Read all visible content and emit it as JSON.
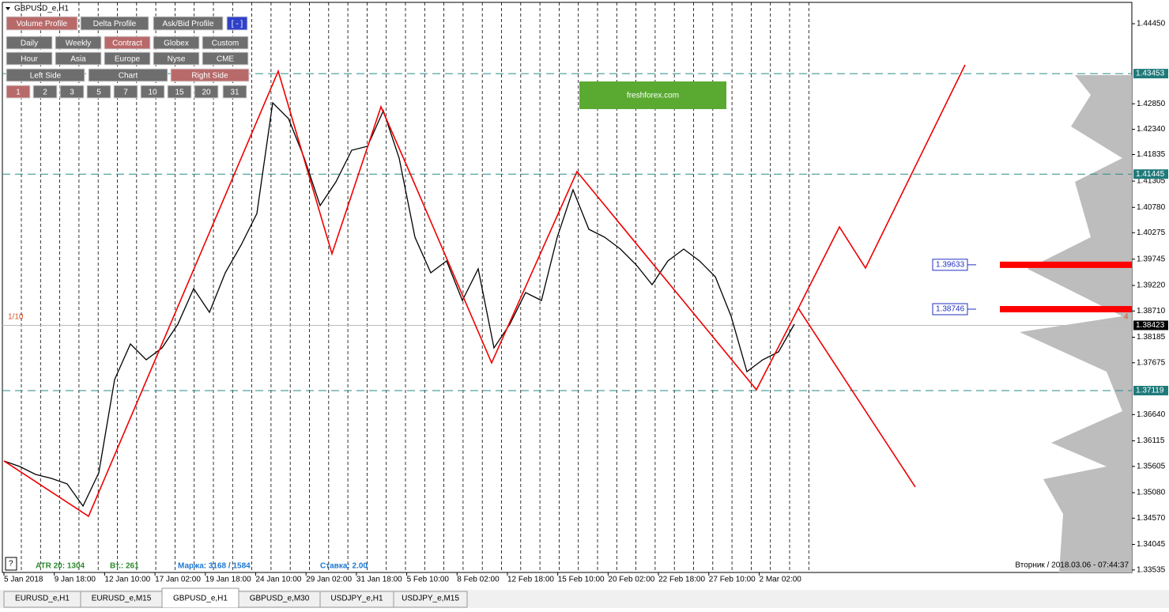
{
  "window": {
    "title": "GBPUSD_e,H1"
  },
  "toolbar": {
    "rows": [
      [
        "Volume Profile",
        "Delta Profile",
        "Ask/Bid Profile",
        "[ - ]"
      ],
      [
        "Daily",
        "Weekly",
        "Contract",
        "Globex",
        "Custom"
      ],
      [
        "Hour",
        "Asia",
        "Europe",
        "Nyse",
        "CME"
      ],
      [
        "Left Side",
        "Chart",
        "Right Side"
      ],
      [
        "1",
        "2",
        "3",
        "5",
        "7",
        "10",
        "15",
        "20",
        "31"
      ]
    ]
  },
  "logo": "freshforex.com",
  "chart_data": {
    "type": "line",
    "ylim": [
      1.33485,
      1.44924
    ],
    "yticks": [
      {
        "value": 1.4445,
        "label": "1.44450"
      },
      {
        "value": 1.4285,
        "label": "1.42850"
      },
      {
        "value": 1.4234,
        "label": "1.42340"
      },
      {
        "value": 1.41835,
        "label": "1.41835"
      },
      {
        "value": 1.41305,
        "label": "1.41305"
      },
      {
        "value": 1.4078,
        "label": "1.40780"
      },
      {
        "value": 1.40275,
        "label": "1.40275"
      },
      {
        "value": 1.39745,
        "label": "1.39745"
      },
      {
        "value": 1.3922,
        "label": "1.39220"
      },
      {
        "value": 1.3871,
        "label": "1.38710"
      },
      {
        "value": 1.38185,
        "label": "1.38185"
      },
      {
        "value": 1.37675,
        "label": "1.37675"
      },
      {
        "value": 1.3664,
        "label": "1.36640"
      },
      {
        "value": 1.36115,
        "label": "1.36115"
      },
      {
        "value": 1.35605,
        "label": "1.35605"
      },
      {
        "value": 1.3508,
        "label": "1.35080"
      },
      {
        "value": 1.3457,
        "label": "1.34570"
      },
      {
        "value": 1.34045,
        "label": "1.34045"
      },
      {
        "value": 1.33535,
        "label": "1.33535"
      }
    ],
    "x_labels": [
      "5 Jan 2018",
      "9 Jan 18:00",
      "12 Jan 10:00",
      "17 Jan 02:00",
      "19 Jan 18:00",
      "24 Jan 10:00",
      "29 Jan 02:00",
      "31 Jan 18:00",
      "5 Feb 10:00",
      "8 Feb 02:00",
      "12 Feb 18:00",
      "15 Feb 10:00",
      "20 Feb 02:00",
      "22 Feb 18:00",
      "27 Feb 10:00",
      "2 Mar 02:00"
    ],
    "price": [
      1.35713,
      1.35602,
      1.35444,
      1.35365,
      1.35254,
      1.34812,
      1.35476,
      1.3734,
      1.38051,
      1.37735,
      1.37972,
      1.38446,
      1.39157,
      1.38683,
      1.39473,
      1.40026,
      1.40658,
      1.4287,
      1.42554,
      1.41764,
      1.40816,
      1.4129,
      1.41922,
      1.42001,
      1.42712,
      1.41764,
      1.40184,
      1.39473,
      1.3971,
      1.3892,
      1.39552,
      1.37972,
      1.38446,
      1.39078,
      1.3892,
      1.40184,
      1.41132,
      1.40342,
      1.40184,
      1.39947,
      1.39631,
      1.39236,
      1.3971,
      1.39947,
      1.3971,
      1.39394,
      1.38604,
      1.37498,
      1.37735,
      1.37893,
      1.38446
    ],
    "zigzag": [
      1.35714,
      1.34608,
      1.43502,
      1.39853,
      1.42791,
      1.41527,
      1.37673,
      1.41496,
      1.40343,
      1.37136,
      1.38763,
      1.4039,
      1.39569,
      1.43629
    ],
    "zigzag_branch": [
      1.38763,
      1.35193
    ],
    "levels": [
      {
        "value": 1.43453,
        "label": "1.43453"
      },
      {
        "value": 1.41445,
        "label": "1.41445"
      },
      {
        "value": 1.37119,
        "label": "1.37119"
      }
    ],
    "current": {
      "value": 1.38423,
      "label": "1.38423"
    },
    "volume_levels": [
      {
        "value": 1.39633,
        "label": "1.39633"
      },
      {
        "value": 1.38746,
        "label": "1.38746"
      }
    ],
    "left_note": "1/10",
    "right_note": "4"
  },
  "status": {
    "help": "?",
    "atr": "ATR 20: 1304",
    "vol": "Вт.: 261",
    "margin": "Маржа: 3168 / 1584",
    "rate": "Ставка: 2.00",
    "datetime": "Вторник  /  2018.03.06 - 07:44:37"
  },
  "tabs": [
    "EURUSD_e,H1",
    "EURUSD_e,M15",
    "GBPUSD_e,H1",
    "GBPUSD_e,M30",
    "USDJPY_e,H1",
    "USDJPY_e,M15"
  ]
}
